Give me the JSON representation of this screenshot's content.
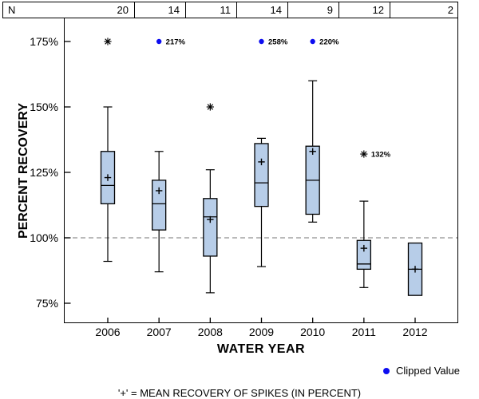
{
  "header_table": {
    "label": "N",
    "counts": [
      "20",
      "14",
      "11",
      "14",
      "9",
      "12",
      "2"
    ]
  },
  "y_axis": {
    "title": "PERCENT RECOVERY",
    "tick_labels": [
      "175%",
      "150%",
      "125%",
      "100%",
      "75%"
    ],
    "tick_values": [
      175,
      150,
      125,
      100,
      75
    ]
  },
  "x_axis": {
    "title": "WATER YEAR",
    "categories": [
      "2006",
      "2007",
      "2008",
      "2009",
      "2010",
      "2011",
      "2012"
    ]
  },
  "legend": {
    "label": "Clipped Value"
  },
  "footnote": "'+' = MEAN RECOVERY OF SPIKES (IN PERCENT)",
  "colors": {
    "box_fill": "#b7cde8",
    "box_stroke": "#000000",
    "reference_line": "#909090",
    "clipped_marker": "#0d0df0"
  },
  "chart_data": {
    "type": "boxplot",
    "xlabel": "WATER YEAR",
    "ylabel": "PERCENT RECOVERY",
    "y_unit": "percent",
    "ylim": [
      67,
      184
    ],
    "grid": "dashed reference line at 100% only",
    "clip_level": 175,
    "reference_line": 100,
    "legend_position": "bottom-right",
    "categories": [
      "2006",
      "2007",
      "2008",
      "2009",
      "2010",
      "2011",
      "2012"
    ],
    "n_per_category": [
      20,
      14,
      11,
      14,
      9,
      12,
      2
    ],
    "boxes": [
      {
        "year": "2006",
        "n": 20,
        "whisker_low": 91,
        "q1": 113,
        "median": 120,
        "mean": 123,
        "q3": 133,
        "whisker_high": 150,
        "outliers": [
          {
            "value": 175,
            "label": ""
          }
        ],
        "clipped": []
      },
      {
        "year": "2007",
        "n": 14,
        "whisker_low": 87,
        "q1": 103,
        "median": 113,
        "mean": 118,
        "q3": 122,
        "whisker_high": 133,
        "outliers": [],
        "clipped": [
          {
            "value": 217,
            "label": "217%",
            "plotted_at": 175
          }
        ]
      },
      {
        "year": "2008",
        "n": 11,
        "whisker_low": 79,
        "q1": 93,
        "median": 108,
        "mean": 107,
        "q3": 115,
        "whisker_high": 126,
        "outliers": [
          {
            "value": 150,
            "label": ""
          }
        ],
        "clipped": []
      },
      {
        "year": "2009",
        "n": 14,
        "whisker_low": 89,
        "q1": 112,
        "median": 121,
        "mean": 129,
        "q3": 136,
        "whisker_high": 138,
        "outliers": [],
        "clipped": [
          {
            "value": 258,
            "label": "258%",
            "plotted_at": 175
          }
        ]
      },
      {
        "year": "2010",
        "n": 9,
        "whisker_low": 106,
        "q1": 109,
        "median": 122,
        "mean": 133,
        "q3": 135,
        "whisker_high": 160,
        "outliers": [],
        "clipped": [
          {
            "value": 220,
            "label": "220%",
            "plotted_at": 175
          }
        ]
      },
      {
        "year": "2011",
        "n": 12,
        "whisker_low": 81,
        "q1": 88,
        "median": 90,
        "mean": 96,
        "q3": 99,
        "whisker_high": 114,
        "outliers": [
          {
            "value": 132,
            "label": "132%"
          }
        ],
        "clipped": []
      },
      {
        "year": "2012",
        "n": 2,
        "whisker_low": null,
        "q1": 78,
        "median": 88,
        "mean": 88,
        "q3": 98,
        "whisker_high": null,
        "outliers": [],
        "clipped": []
      }
    ]
  }
}
